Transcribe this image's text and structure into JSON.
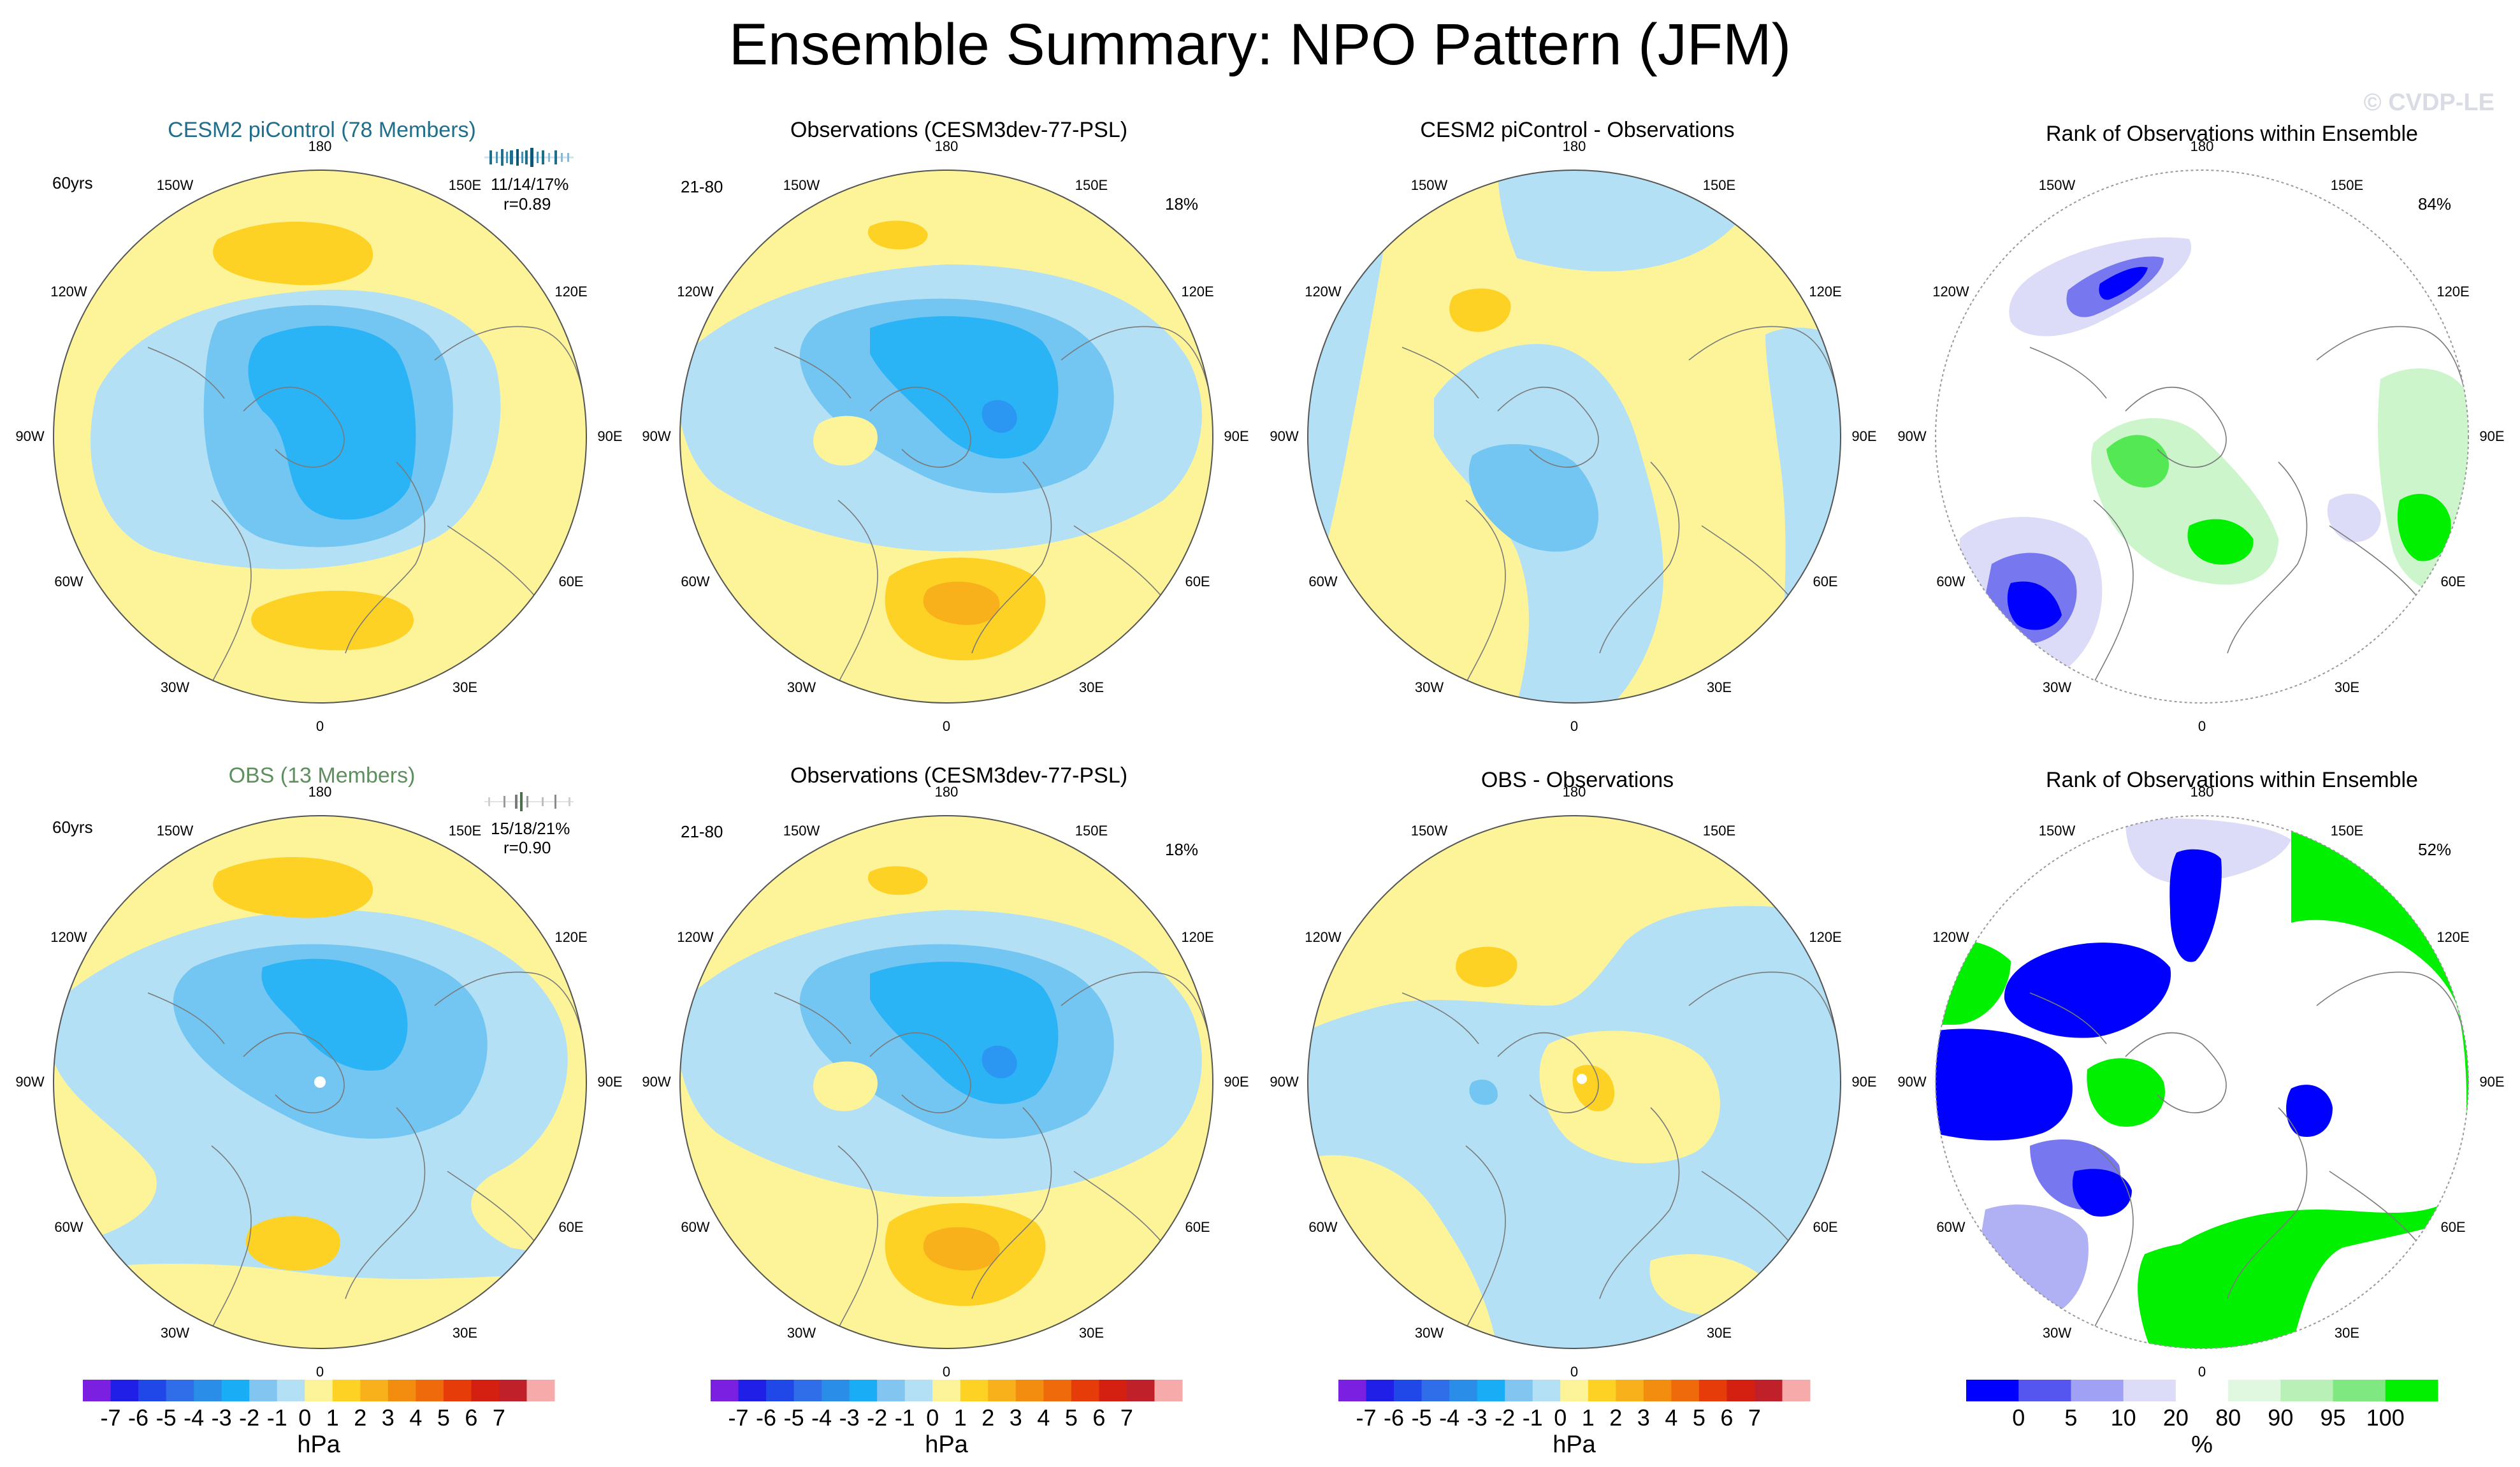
{
  "title": "Ensemble Summary: NPO Pattern (JFM)",
  "watermark": "© CVDP-LE",
  "colors": {
    "neg1": "#b4e0f5",
    "neg2": "#73c5f2",
    "neg3": "#00b3ff",
    "neg4": "#2c97f2",
    "pos1": "#fdf49a",
    "pos2": "#fdd225",
    "pos3": "#f8b11a",
    "pos4": "#f08a10",
    "rank_blue": "#0000ff",
    "rank_midblue": "#7777f0",
    "rank_lightblue": "#b0b0f5",
    "rank_paleblue": "#dcdcf8",
    "rank_green": "#00f000",
    "rank_midgreen": "#55e855",
    "rank_palegreen": "#ccf5cc"
  },
  "longitude_labels": [
    "180",
    "150E",
    "120E",
    "90E",
    "60E",
    "30E",
    "0",
    "30W",
    "60W",
    "90W",
    "120W",
    "150W"
  ],
  "panels": {
    "p11": {
      "title": "CESM2 piControl (78 Members)",
      "title_color": "#1f6e8c",
      "note_left": "60yrs",
      "stat1": "11/14/17%",
      "stat2": "r=0.89"
    },
    "p12": {
      "title": "Observations (CESM3dev-77-PSL)",
      "note_left": "21-80",
      "note_right": "18%"
    },
    "p13": {
      "title": "CESM2 piControl - Observations"
    },
    "p14": {
      "title": "Rank of Observations within Ensemble",
      "note_right": "84%"
    },
    "p21": {
      "title": "OBS (13 Members)",
      "title_color": "#5e8f5e",
      "note_left": "60yrs",
      "stat1": "15/18/21%",
      "stat2": "r=0.90"
    },
    "p22": {
      "title": "Observations (CESM3dev-77-PSL)",
      "note_left": "21-80",
      "note_right": "18%"
    },
    "p23": {
      "title": "OBS - Observations"
    },
    "p24": {
      "title": "Rank of Observations within Ensemble",
      "note_right": "52%"
    }
  },
  "colorbar_hpa": {
    "unit": "hPa",
    "ticks": [
      "-7",
      "-6",
      "-5",
      "-4",
      "-3",
      "-2",
      "-1",
      "0",
      "1",
      "2",
      "3",
      "4",
      "5",
      "6",
      "7"
    ],
    "colors": [
      "#7b1fe0",
      "#1f1fe8",
      "#2047e8",
      "#2f6ee8",
      "#2a8de8",
      "#19adf5",
      "#82c5f0",
      "#b4e0f5",
      "#fdf49a",
      "#fdd225",
      "#f8b11a",
      "#f38d10",
      "#ef6a0a",
      "#e63c0a",
      "#d42010",
      "#c0202a",
      "#f6aaaa"
    ]
  },
  "colorbar_rank": {
    "unit": "%",
    "ticks": [
      "0",
      "5",
      "10",
      "20",
      "80",
      "90",
      "95",
      "100"
    ],
    "colors": [
      "#0000ff",
      "#5555f0",
      "#a0a0f5",
      "#dcdcf8",
      "#ffffff",
      "#e0f8e0",
      "#b8f0b8",
      "#80e880",
      "#00f000"
    ]
  }
}
